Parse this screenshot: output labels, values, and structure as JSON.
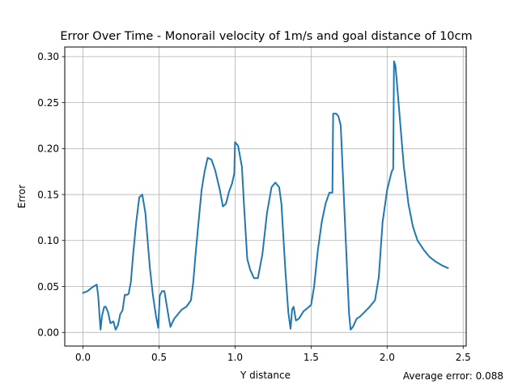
{
  "chart_data": {
    "type": "line",
    "title": "Error Over Time - Monorail velocity of 1m/s and goal distance of 10cm",
    "xlabel": "Y distance",
    "ylabel": "Error",
    "xlim": [
      -0.12,
      2.52
    ],
    "ylim": [
      -0.0148,
      0.3105
    ],
    "x_ticks": [
      0.0,
      0.5,
      1.0,
      1.5,
      2.0,
      2.5
    ],
    "y_ticks": [
      0.0,
      0.05,
      0.1,
      0.15,
      0.2,
      0.25,
      0.3
    ],
    "grid": true,
    "legend": "none",
    "annotation": "Average error: 0.088",
    "colors": {
      "line": "#1f77b4",
      "grid": "#b0b0b0",
      "axis": "#000000"
    },
    "series": [
      {
        "x": [
          0.0,
          0.03,
          0.06,
          0.09,
          0.1,
          0.115,
          0.125,
          0.14,
          0.15,
          0.165,
          0.18,
          0.2,
          0.215,
          0.23,
          0.245,
          0.26,
          0.275,
          0.29,
          0.3,
          0.315,
          0.33,
          0.35,
          0.37,
          0.39,
          0.41,
          0.425,
          0.44,
          0.46,
          0.48,
          0.495,
          0.505,
          0.52,
          0.535,
          0.55,
          0.565,
          0.575,
          0.585,
          0.6,
          0.625,
          0.65,
          0.68,
          0.71,
          0.725,
          0.74,
          0.76,
          0.78,
          0.8,
          0.82,
          0.845,
          0.87,
          0.9,
          0.92,
          0.94,
          0.96,
          0.98,
          0.995,
          1.0,
          1.02,
          1.045,
          1.06,
          1.08,
          1.1,
          1.125,
          1.15,
          1.18,
          1.21,
          1.24,
          1.265,
          1.29,
          1.305,
          1.33,
          1.35,
          1.365,
          1.375,
          1.385,
          1.4,
          1.42,
          1.45,
          1.48,
          1.5,
          1.52,
          1.545,
          1.57,
          1.595,
          1.62,
          1.64,
          1.645,
          1.665,
          1.68,
          1.695,
          1.72,
          1.74,
          1.75,
          1.76,
          1.775,
          1.8,
          1.82,
          1.85,
          1.88,
          1.92,
          1.945,
          1.97,
          2.0,
          2.03,
          2.04,
          2.045,
          2.055,
          2.07,
          2.09,
          2.11,
          2.14,
          2.17,
          2.2,
          2.24,
          2.28,
          2.32,
          2.36,
          2.4
        ],
        "y": [
          0.043,
          0.045,
          0.049,
          0.052,
          0.04,
          0.003,
          0.018,
          0.028,
          0.028,
          0.022,
          0.01,
          0.012,
          0.003,
          0.008,
          0.02,
          0.024,
          0.041,
          0.041,
          0.042,
          0.055,
          0.085,
          0.12,
          0.147,
          0.15,
          0.13,
          0.1,
          0.07,
          0.04,
          0.018,
          0.005,
          0.04,
          0.045,
          0.045,
          0.03,
          0.015,
          0.006,
          0.01,
          0.015,
          0.02,
          0.025,
          0.028,
          0.035,
          0.055,
          0.085,
          0.12,
          0.155,
          0.175,
          0.19,
          0.188,
          0.176,
          0.155,
          0.137,
          0.14,
          0.153,
          0.162,
          0.173,
          0.207,
          0.203,
          0.18,
          0.135,
          0.08,
          0.068,
          0.059,
          0.059,
          0.085,
          0.13,
          0.158,
          0.163,
          0.158,
          0.14,
          0.07,
          0.022,
          0.004,
          0.025,
          0.028,
          0.013,
          0.015,
          0.023,
          0.027,
          0.03,
          0.05,
          0.09,
          0.12,
          0.14,
          0.152,
          0.152,
          0.238,
          0.238,
          0.235,
          0.225,
          0.13,
          0.055,
          0.02,
          0.003,
          0.006,
          0.015,
          0.017,
          0.022,
          0.027,
          0.035,
          0.06,
          0.12,
          0.155,
          0.175,
          0.178,
          0.295,
          0.29,
          0.26,
          0.22,
          0.18,
          0.14,
          0.115,
          0.1,
          0.09,
          0.082,
          0.077,
          0.073,
          0.07
        ]
      }
    ]
  }
}
